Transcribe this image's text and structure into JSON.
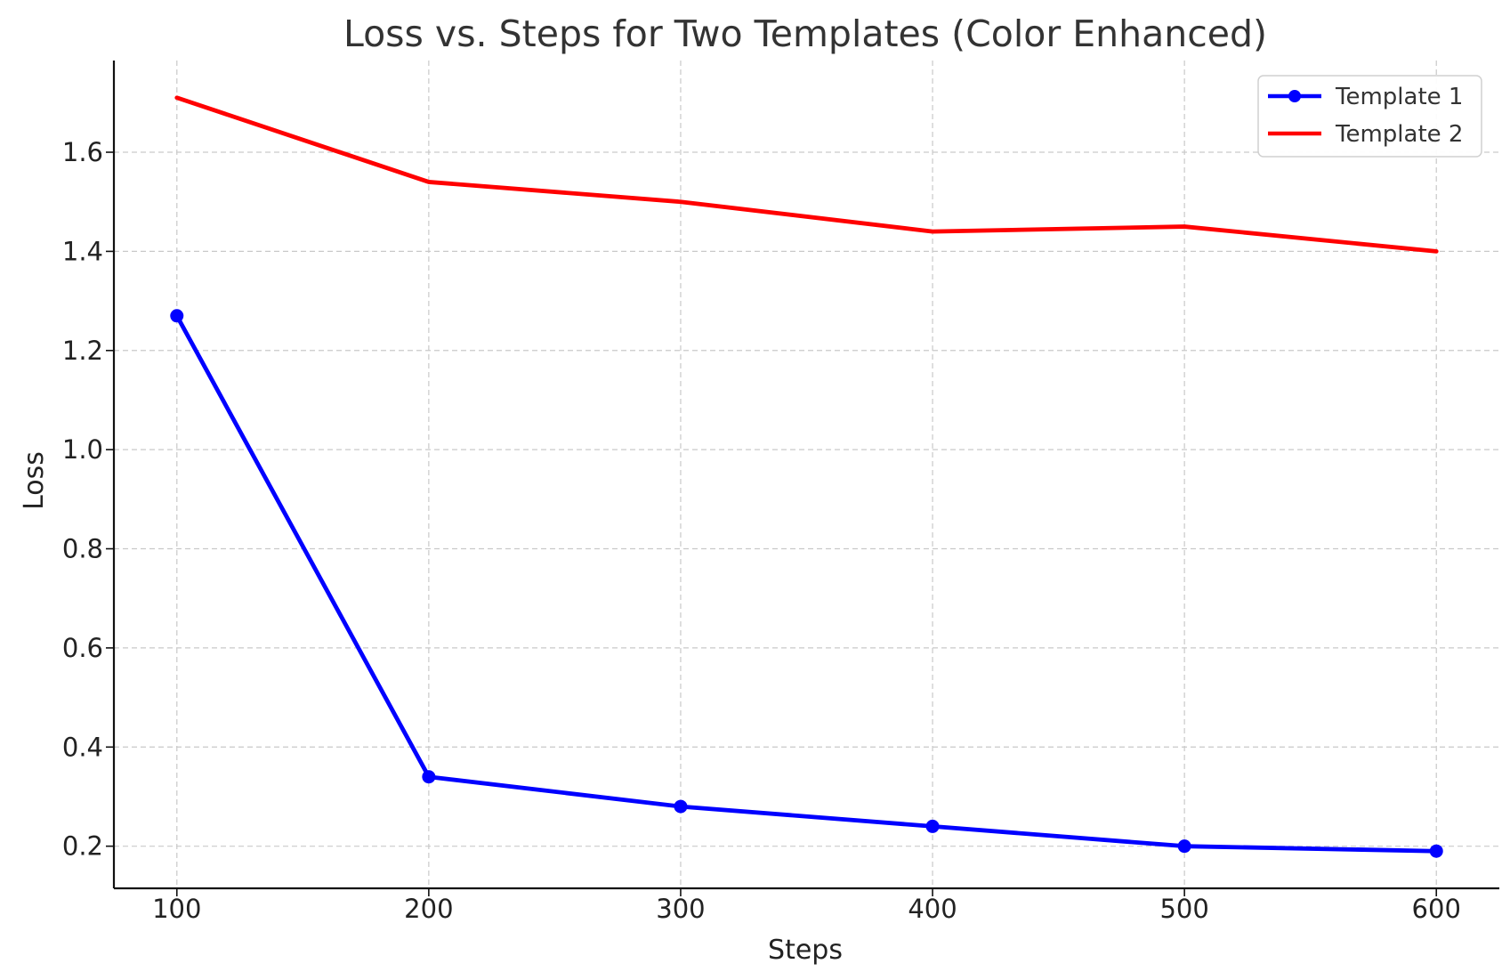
{
  "chart_data": {
    "type": "line",
    "title": "Loss vs. Steps for Two Templates (Color Enhanced)",
    "xlabel": "Steps",
    "ylabel": "Loss",
    "x": [
      100,
      200,
      300,
      400,
      500,
      600
    ],
    "xlim": [
      75,
      625
    ],
    "ylim": [
      0.115,
      1.785
    ],
    "xticks": [
      100,
      200,
      300,
      400,
      500,
      600
    ],
    "yticks": [
      0.2,
      0.4,
      0.6,
      0.8,
      1.0,
      1.2,
      1.4,
      1.6
    ],
    "xtick_labels": [
      "100",
      "200",
      "300",
      "400",
      "500",
      "600"
    ],
    "ytick_labels": [
      "0.2",
      "0.4",
      "0.6",
      "0.8",
      "1.0",
      "1.2",
      "1.4",
      "1.6"
    ],
    "grid": true,
    "legend_position": "top-right",
    "series": [
      {
        "name": "Template 1",
        "color": "#0000ff",
        "marker": "circle",
        "values": [
          1.27,
          0.34,
          0.28,
          0.24,
          0.2,
          0.19
        ]
      },
      {
        "name": "Template 2",
        "color": "#ff0000",
        "marker": "none",
        "values": [
          1.71,
          1.54,
          1.5,
          1.44,
          1.45,
          1.4
        ]
      }
    ]
  }
}
